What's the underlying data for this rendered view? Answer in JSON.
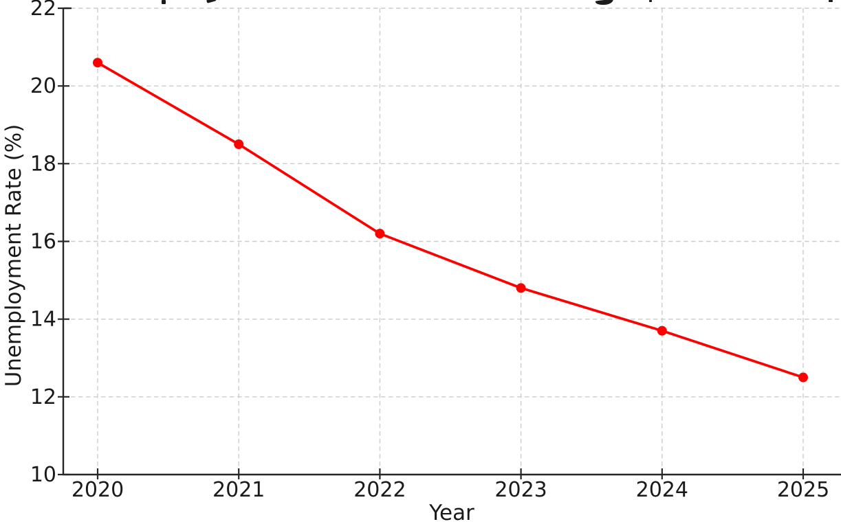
{
  "chart_data": {
    "type": "line",
    "title": "",
    "title_cropped": true,
    "categories": [
      "2020",
      "2021",
      "2022",
      "2023",
      "2024",
      "2025"
    ],
    "series": [
      {
        "name": "Unemployment Rate",
        "values": [
          20.6,
          18.5,
          16.2,
          14.8,
          13.7,
          12.5
        ]
      }
    ],
    "xlabel": "Year",
    "ylabel": "Unemployment Rate (%)",
    "ylim": [
      10,
      22
    ],
    "yticks": [
      10,
      12,
      14,
      16,
      18,
      20,
      22
    ],
    "grid": "dashed",
    "legend_position": "none",
    "line_color": "#ff0000",
    "marker": "circle",
    "marker_color": "#ff0000"
  },
  "style": {
    "background_color": "#ffffff",
    "grid_color": "#cccccc",
    "spine_color": "#262626",
    "tick_color": "#262626",
    "text_color": "#1a1a1a"
  }
}
